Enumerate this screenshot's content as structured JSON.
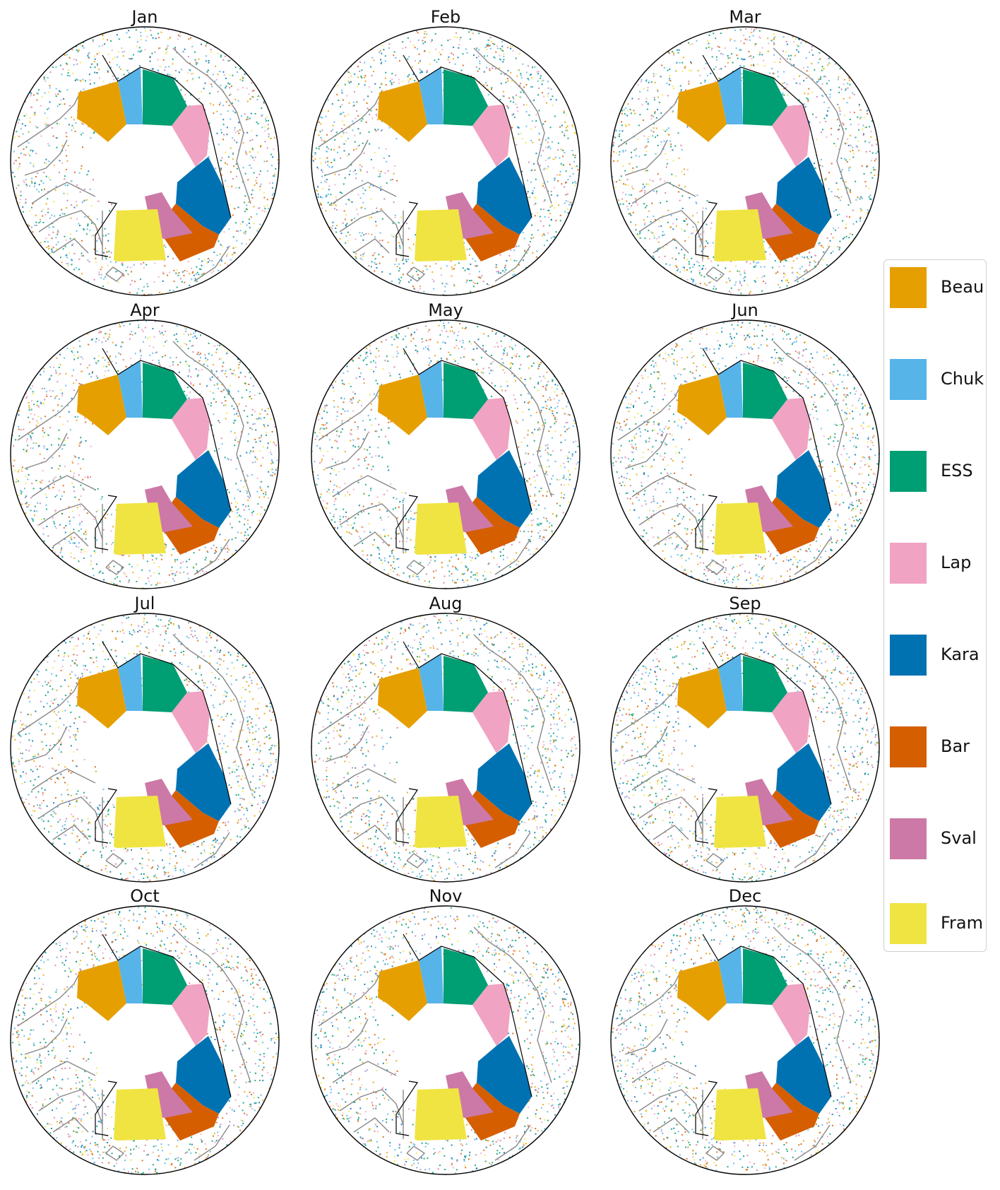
{
  "figure": {
    "panels": [
      "Jan",
      "Feb",
      "Mar",
      "Apr",
      "May",
      "Jun",
      "Jul",
      "Aug",
      "Sep",
      "Oct",
      "Nov",
      "Dec"
    ]
  },
  "legend": {
    "items": [
      {
        "label": "Beau",
        "color": "#E69F00"
      },
      {
        "label": "Chuk",
        "color": "#56B4E9"
      },
      {
        "label": "ESS",
        "color": "#009E73"
      },
      {
        "label": "Lap",
        "color": "#F0A3C2"
      },
      {
        "label": "Kara",
        "color": "#0072B2"
      },
      {
        "label": "Bar",
        "color": "#D55E00"
      },
      {
        "label": "Sval",
        "color": "#CC79A7"
      },
      {
        "label": "Fram",
        "color": "#F0E442"
      }
    ]
  },
  "colors": {
    "coastline": "#888888",
    "boundary": "#000000",
    "background": "#ffffff"
  }
}
